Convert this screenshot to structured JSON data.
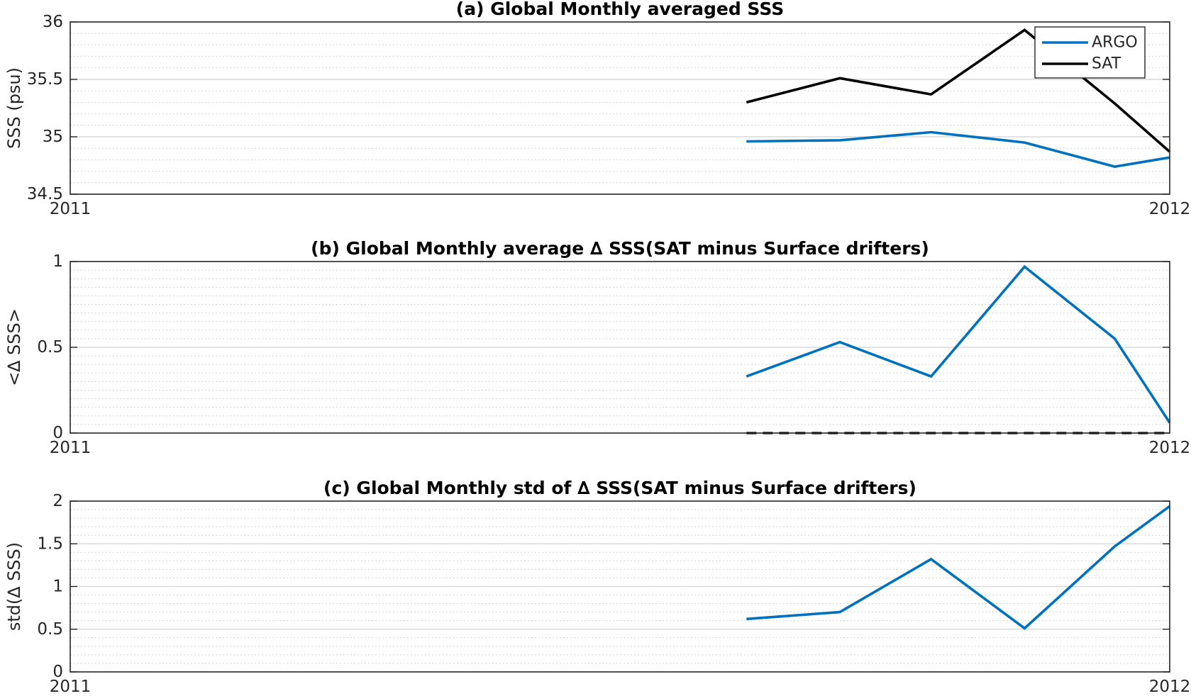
{
  "chart_data": [
    {
      "type": "line",
      "title": "(a) Global Monthly averaged SSS",
      "ylabel": "SSS (psu)",
      "xlabel": "",
      "xlim": [
        2011,
        2012
      ],
      "x_tick_labels": [
        "2011",
        "2012"
      ],
      "ylim": [
        34.5,
        36
      ],
      "yticks": [
        34.5,
        35,
        35.5,
        36
      ],
      "y_minor_step": 0.1,
      "grid": true,
      "legend": "top-right",
      "x": [
        2011.615,
        2011.7,
        2011.783,
        2011.868,
        2011.95,
        2012.0
      ],
      "series": [
        {
          "name": "ARGO",
          "color": "#0072bd",
          "dash": false,
          "values": [
            34.96,
            34.97,
            35.04,
            34.95,
            34.74,
            34.82
          ]
        },
        {
          "name": "SAT",
          "color": "#000000",
          "dash": false,
          "values": [
            35.3,
            35.51,
            35.37,
            35.93,
            35.29,
            34.87
          ]
        }
      ]
    },
    {
      "type": "line",
      "title": "(b) Global Monthly average ∆ SSS(SAT minus Surface drifters)",
      "ylabel": "<∆ SSS>",
      "xlabel": "",
      "xlim": [
        2011,
        2012
      ],
      "x_tick_labels": [
        "2011",
        "2012"
      ],
      "ylim": [
        0,
        1
      ],
      "yticks": [
        0,
        0.5,
        1
      ],
      "y_minor_step": 0.05,
      "grid": true,
      "x": [
        2011.615,
        2011.7,
        2011.783,
        2011.868,
        2011.95,
        2012.0
      ],
      "series": [
        {
          "color": "#0072bd",
          "dash": false,
          "values": [
            0.33,
            0.53,
            0.33,
            0.97,
            0.55,
            0.06
          ]
        },
        {
          "color": "#000000",
          "dash": true,
          "values": [
            0,
            0,
            0,
            0,
            0,
            0
          ]
        }
      ]
    },
    {
      "type": "line",
      "title": "(c) Global Monthly std of ∆ SSS(SAT minus Surface drifters)",
      "ylabel": "std(∆ SSS)",
      "xlabel": "",
      "xlim": [
        2011,
        2012
      ],
      "x_tick_labels": [
        "2011",
        "2012"
      ],
      "ylim": [
        0,
        2
      ],
      "yticks": [
        0,
        0.5,
        1,
        1.5,
        2
      ],
      "y_minor_step": 0.1,
      "grid": true,
      "x": [
        2011.615,
        2011.7,
        2011.783,
        2011.868,
        2011.95,
        2012.0
      ],
      "series": [
        {
          "color": "#0072bd",
          "dash": false,
          "values": [
            0.62,
            0.7,
            1.32,
            0.51,
            1.47,
            1.94
          ]
        }
      ]
    }
  ]
}
